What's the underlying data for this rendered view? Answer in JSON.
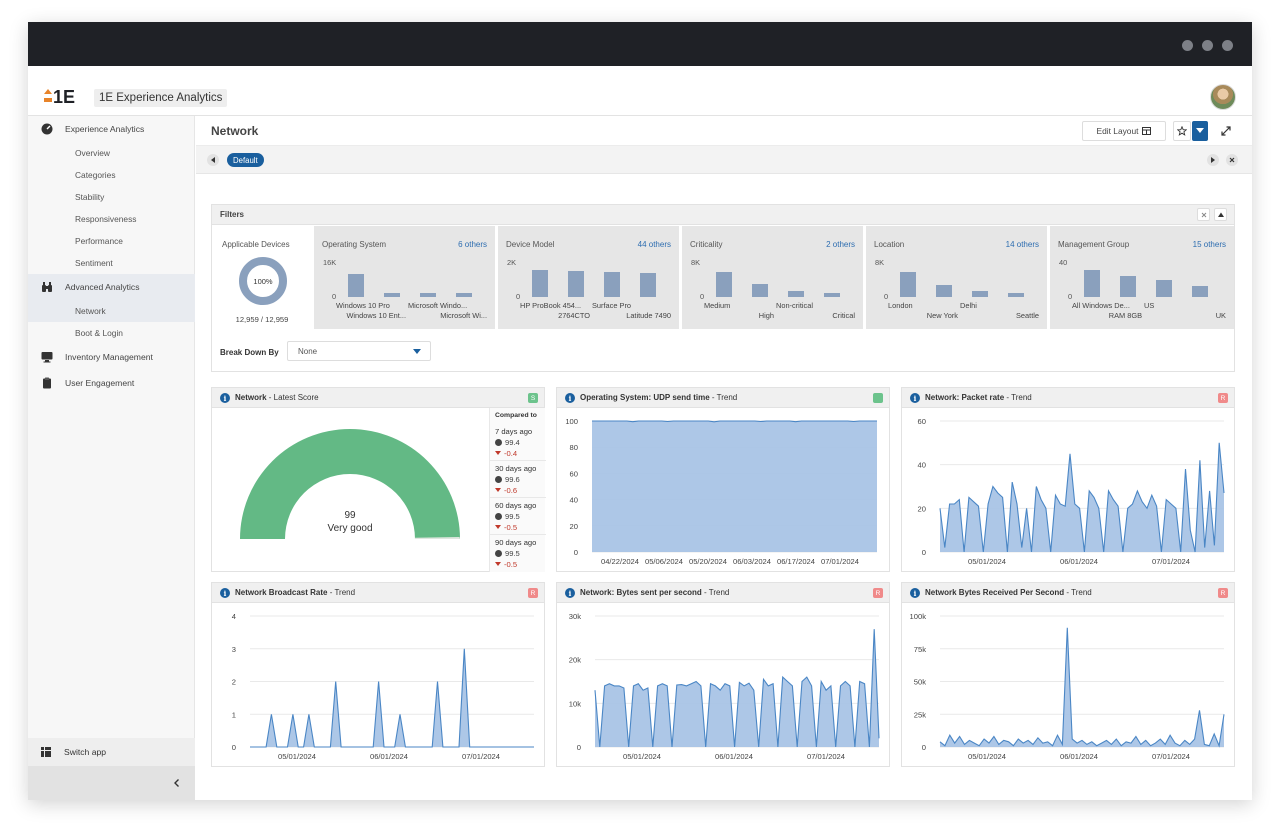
{
  "app": {
    "title": "1E Experience Analytics",
    "logo_text": "1E"
  },
  "sidebar": {
    "groups": [
      {
        "label": "Experience Analytics",
        "icon": "gauge-icon"
      },
      {
        "label": "Advanced Analytics",
        "icon": "binoculars-icon"
      },
      {
        "label": "Inventory Management",
        "icon": "monitor-icon"
      },
      {
        "label": "User Engagement",
        "icon": "clipboard-icon"
      }
    ],
    "experience_items": [
      "Overview",
      "Categories",
      "Stability",
      "Responsiveness",
      "Performance",
      "Sentiment"
    ],
    "advanced_items": [
      "Network",
      "Boot & Login"
    ],
    "switch_app": "Switch app"
  },
  "page": {
    "title": "Network",
    "edit_layout": "Edit Layout",
    "tab_default": "Default"
  },
  "filters": {
    "title": "Filters",
    "applicable": {
      "label": "Applicable Devices",
      "percent": "100%",
      "count": "12,959 / 12,959"
    },
    "cells": [
      {
        "name": "Operating System",
        "others": "6 others",
        "ymax": "16K",
        "ymin": "0",
        "bars": [
          0.82,
          0.14,
          0.14,
          0.14
        ],
        "labels_top": [
          "Windows 10 Pro",
          "Microsoft Windo..."
        ],
        "labels_bottom": [
          "Windows 10 Ent...",
          "Microsoft Wi..."
        ]
      },
      {
        "name": "Device Model",
        "others": "44 others",
        "ymax": "2K",
        "ymin": "0",
        "bars": [
          0.95,
          0.92,
          0.88,
          0.86
        ],
        "labels_top": [
          "HP ProBook 454...",
          "Surface Pro"
        ],
        "labels_bottom": [
          "2764CTO",
          "Latitude 7490"
        ]
      },
      {
        "name": "Criticality",
        "others": "2 others",
        "ymax": "8K",
        "ymin": "0",
        "bars": [
          0.9,
          0.48,
          0.2,
          0.14
        ],
        "labels_top": [
          "Medium",
          "Non-critical"
        ],
        "labels_bottom": [
          "High",
          "Critical"
        ]
      },
      {
        "name": "Location",
        "others": "14 others",
        "ymax": "8K",
        "ymin": "0",
        "bars": [
          0.88,
          0.44,
          0.22,
          0.14
        ],
        "labels_top": [
          "London",
          "Delhi"
        ],
        "labels_bottom": [
          "New York",
          "Seattle"
        ]
      },
      {
        "name": "Management Group",
        "others": "15 others",
        "ymax": "40",
        "ymin": "0",
        "bars": [
          0.95,
          0.76,
          0.6,
          0.4
        ],
        "labels_top": [
          "All Windows De...",
          "US"
        ],
        "labels_bottom": [
          "RAM 8GB",
          "UK"
        ]
      }
    ],
    "break_down_label": "Break Down By",
    "break_down_value": "None"
  },
  "cards": [
    {
      "title_bold": "Network",
      "title_rest": " - Latest Score",
      "badge": "S",
      "badge_color": "#6cc38c"
    },
    {
      "title_bold": "Operating System: UDP send time",
      "title_rest": " - Trend",
      "badge": "",
      "badge_color": "#6cc38c"
    },
    {
      "title_bold": "Network: Packet rate",
      "title_rest": " - Trend",
      "badge": "R",
      "badge_color": "#f08a8a"
    },
    {
      "title_bold": "Network Broadcast Rate",
      "title_rest": " - Trend",
      "badge": "R",
      "badge_color": "#f08a8a"
    },
    {
      "title_bold": "Network: Bytes sent per second",
      "title_rest": " - Trend",
      "badge": "R",
      "badge_color": "#f08a8a"
    },
    {
      "title_bold": "Network Bytes Received Per Second",
      "title_rest": " - Trend",
      "badge": "R",
      "badge_color": "#f08a8a"
    }
  ],
  "score": {
    "value": "99",
    "label": "Very good",
    "compared_to": "Compared to",
    "comparisons": [
      {
        "period": "7 days ago",
        "value": "99.4",
        "delta": "-0.4"
      },
      {
        "period": "30 days ago",
        "value": "99.6",
        "delta": "-0.6"
      },
      {
        "period": "60 days ago",
        "value": "99.5",
        "delta": "-0.5"
      },
      {
        "period": "90 days ago",
        "value": "99.5",
        "delta": "-0.5"
      }
    ]
  },
  "chart_data": [
    {
      "type": "area",
      "title": "Operating System: UDP send time - Trend",
      "yticks": [
        "0",
        "20",
        "40",
        "60",
        "80",
        "100"
      ],
      "ylim": [
        0,
        100
      ],
      "xticks": [
        "04/22/2024",
        "05/06/2024",
        "05/20/2024",
        "06/03/2024",
        "06/17/2024",
        "07/01/2024"
      ],
      "values": [
        100,
        100,
        100,
        100,
        100,
        100,
        100,
        99.5,
        100,
        100,
        100,
        100,
        100,
        99.6,
        100,
        100,
        100,
        100,
        100,
        100,
        100,
        99.4,
        100,
        100,
        100,
        100,
        100,
        100,
        100,
        99.6,
        100,
        100,
        100,
        100,
        100,
        99.5,
        100,
        100,
        100,
        100,
        100,
        100,
        100,
        100,
        100,
        99.6,
        100,
        100,
        100,
        100
      ]
    },
    {
      "type": "area",
      "title": "Network: Packet rate - Trend",
      "yticks": [
        "0",
        "20",
        "40",
        "60"
      ],
      "ylim": [
        0,
        60
      ],
      "xticks": [
        "05/01/2024",
        "06/01/2024",
        "07/01/2024"
      ],
      "values": [
        20,
        2,
        22,
        22,
        24,
        0,
        25,
        23,
        21,
        0,
        22,
        30,
        27,
        25,
        0,
        32,
        22,
        2,
        20,
        0,
        30,
        24,
        20,
        0,
        26,
        22,
        21,
        45,
        22,
        20,
        0,
        28,
        25,
        20,
        0,
        28,
        24,
        21,
        0,
        20,
        22,
        28,
        23,
        20,
        26,
        21,
        0,
        24,
        22,
        20,
        0,
        38,
        10,
        0,
        42,
        2,
        28,
        3,
        50,
        27
      ]
    },
    {
      "type": "area",
      "title": "Network Broadcast Rate - Trend",
      "yticks": [
        "0",
        "1",
        "2",
        "3",
        "4"
      ],
      "ylim": [
        0,
        4
      ],
      "xticks": [
        "05/01/2024",
        "06/01/2024",
        "07/01/2024"
      ],
      "values": [
        0,
        0,
        0,
        0,
        1,
        0,
        0,
        0,
        1,
        0,
        0,
        1,
        0,
        0,
        0,
        0,
        2,
        0,
        0,
        0,
        0,
        0,
        0,
        0,
        2,
        0,
        0,
        0,
        1,
        0,
        0,
        0,
        0,
        0,
        0,
        2,
        0,
        0,
        0,
        0,
        3,
        0,
        0,
        0,
        0,
        0,
        0,
        0,
        0,
        0,
        0,
        0,
        0,
        0
      ]
    },
    {
      "type": "area",
      "title": "Network: Bytes sent per second - Trend",
      "yticks": [
        "0",
        "10k",
        "20k",
        "30k"
      ],
      "ylim": [
        0,
        30000
      ],
      "xticks": [
        "05/01/2024",
        "06/01/2024",
        "07/01/2024"
      ],
      "values": [
        13000,
        0,
        14000,
        14500,
        14000,
        14000,
        13500,
        0,
        14000,
        14500,
        13000,
        13500,
        0,
        14000,
        14500,
        14000,
        0,
        14200,
        14300,
        14000,
        14500,
        15000,
        14000,
        0,
        14500,
        14000,
        13000,
        14500,
        14000,
        0,
        14800,
        14000,
        14600,
        13000,
        0,
        15500,
        14000,
        14500,
        0,
        16000,
        15000,
        14000,
        0,
        15000,
        16000,
        14000,
        0,
        15000,
        13000,
        14000,
        0,
        14000,
        15000,
        14000,
        0,
        15000,
        14500,
        0,
        27000,
        2000
      ]
    },
    {
      "type": "area",
      "title": "Network Bytes Received Per Second - Trend",
      "yticks": [
        "0",
        "25k",
        "50k",
        "75k",
        "100k"
      ],
      "ylim": [
        0,
        100000
      ],
      "xticks": [
        "05/01/2024",
        "06/01/2024",
        "07/01/2024"
      ],
      "values": [
        4000,
        1000,
        9000,
        3000,
        8000,
        2000,
        5000,
        3000,
        1000,
        6000,
        3000,
        8000,
        2000,
        5000,
        4000,
        1000,
        6000,
        3000,
        5000,
        2000,
        7000,
        3000,
        4000,
        1000,
        9000,
        2000,
        91000,
        6000,
        3000,
        5000,
        2000,
        4000,
        1000,
        3000,
        5000,
        2000,
        6000,
        1000,
        4000,
        3000,
        8000,
        2000,
        5000,
        1000,
        3000,
        6000,
        2000,
        9000,
        3000,
        1000,
        5000,
        2000,
        6000,
        28000,
        2000,
        1000,
        10000,
        1000,
        25000
      ]
    }
  ]
}
